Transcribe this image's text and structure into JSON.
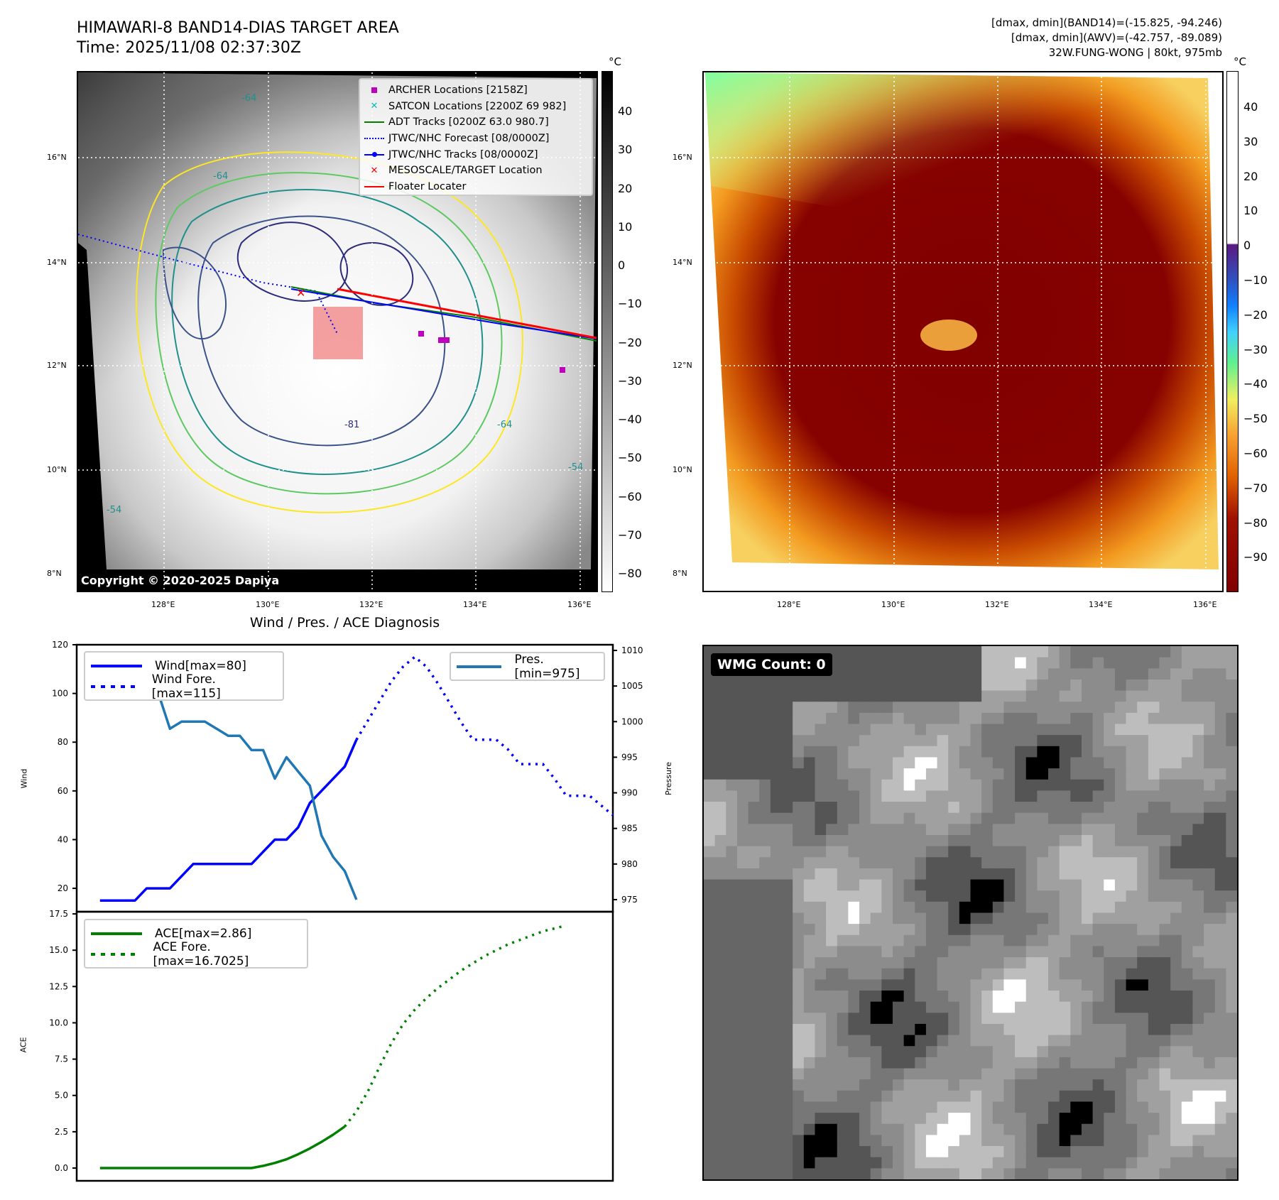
{
  "header": {
    "title_line1": "HIMAWARI-8 BAND14-DIAS TARGET AREA",
    "title_line2": "Time: 2025/11/08 02:37:30Z",
    "info_line1": "[dmax, dmin](BAND14)=(-15.825, -94.246)",
    "info_line2": "[dmax, dmin](AWV)=(-42.757, -89.089)",
    "info_line3": "32W.FUNG-WONG | 80kt, 975mb"
  },
  "maps": {
    "lat_labels": [
      "16°N",
      "14°N",
      "12°N",
      "10°N",
      "8°N"
    ],
    "lon_labels": [
      "128°E",
      "130°E",
      "132°E",
      "134°E",
      "136°E"
    ],
    "copyright": "Copyright © 2020-2025 Dapiya",
    "contour_labels": [
      "-64",
      "-64",
      "-81",
      "-54",
      "-54",
      "-64"
    ],
    "colorbar_unit": "°C",
    "colorbar1_ticks": [
      "40",
      "30",
      "20",
      "10",
      "0",
      "−10",
      "−20",
      "−30",
      "−40",
      "−50",
      "−60",
      "−70",
      "−80"
    ],
    "colorbar2_ticks": [
      "40",
      "30",
      "20",
      "10",
      "0",
      "−10",
      "−20",
      "−30",
      "−40",
      "−50",
      "−60",
      "−70",
      "−80",
      "−90"
    ],
    "legend": [
      {
        "label": "ARCHER Locations [2158Z]",
        "color": "#bf00bf",
        "symbol": "square"
      },
      {
        "label": "SATCON Locations [2200Z 69 982]",
        "color": "#00bfbf",
        "symbol": "x"
      },
      {
        "label": "ADT Tracks [0200Z 63.0 980.7]",
        "color": "#008000",
        "symbol": "line"
      },
      {
        "label": "JTWC/NHC Forecast [08/0000Z]",
        "color": "#0000ff",
        "symbol": "dotted"
      },
      {
        "label": "JTWC/NHC Tracks [08/0000Z]",
        "color": "#0000ff",
        "symbol": "line-dot"
      },
      {
        "label": "MESOSCALE/TARGET Location",
        "color": "#ff0000",
        "symbol": "x"
      },
      {
        "label": "Floater Locater",
        "color": "#ff0000",
        "symbol": "line"
      }
    ]
  },
  "chart_data": [
    {
      "type": "line",
      "title": "Wind / Pres. / ACE Diagnosis",
      "ylabel": "Wind",
      "y2label": "Pressure",
      "ylim": [
        10.4,
        120
      ],
      "y2lim": [
        973.3,
        1010.8
      ],
      "yticks": [
        "120",
        "100",
        "80",
        "60",
        "40",
        "20"
      ],
      "y2ticks": [
        "1010",
        "1005",
        "1000",
        "995",
        "990",
        "985",
        "980",
        "975"
      ],
      "series": [
        {
          "name": "Wind[max=80]",
          "color": "#0000ff",
          "style": "solid",
          "x_start": 0,
          "values": [
            15,
            15,
            15,
            15,
            20,
            20,
            20,
            25,
            30,
            30,
            30,
            30,
            30,
            30,
            35,
            40,
            40,
            45,
            55,
            60,
            65,
            70,
            81
          ]
        },
        {
          "name": "Wind Fore.[max=115]",
          "color": "#0000ff",
          "style": "dotted",
          "x_start": 22,
          "values": [
            81,
            89,
            97,
            105,
            111,
            115,
            111,
            104,
            96,
            88,
            81,
            81,
            81,
            77,
            71,
            71,
            71,
            65,
            58,
            58,
            58,
            54,
            50
          ]
        },
        {
          "name": "Pres.[min=975]",
          "color": "#1f77b4",
          "style": "solid",
          "axis": "right",
          "x_start": 0,
          "values": [
            1009,
            1006,
            1006,
            1006,
            1005,
            1004,
            999,
            1000,
            1000,
            1000,
            999,
            998,
            998,
            996,
            996,
            992,
            995,
            993,
            991,
            984,
            981,
            979,
            975
          ]
        }
      ]
    },
    {
      "type": "line",
      "ylabel": "ACE",
      "ylim": [
        -0.88,
        17.65
      ],
      "yticks": [
        "17.5",
        "15.0",
        "12.5",
        "10.0",
        "7.5",
        "5.0",
        "2.5",
        "0.0"
      ],
      "series": [
        {
          "name": "ACE[max=2.86]",
          "color": "#008000",
          "style": "solid",
          "x_start": 0,
          "values": [
            0,
            0,
            0,
            0,
            0,
            0,
            0,
            0,
            0,
            0,
            0,
            0,
            0,
            0,
            0.15,
            0.35,
            0.6,
            0.95,
            1.35,
            1.8,
            2.3,
            2.86
          ]
        },
        {
          "name": "ACE Fore.[max=16.7025]",
          "color": "#008000",
          "style": "dotted",
          "x_start": 21,
          "values": [
            2.86,
            3.9,
            5.3,
            7.0,
            8.6,
            9.9,
            10.9,
            11.7,
            12.4,
            13.0,
            13.6,
            14.1,
            14.6,
            15.0,
            15.4,
            15.7,
            16.0,
            16.3,
            16.5,
            16.7025
          ]
        }
      ]
    }
  ],
  "wmg": {
    "badge": "WMG Count: 0"
  }
}
